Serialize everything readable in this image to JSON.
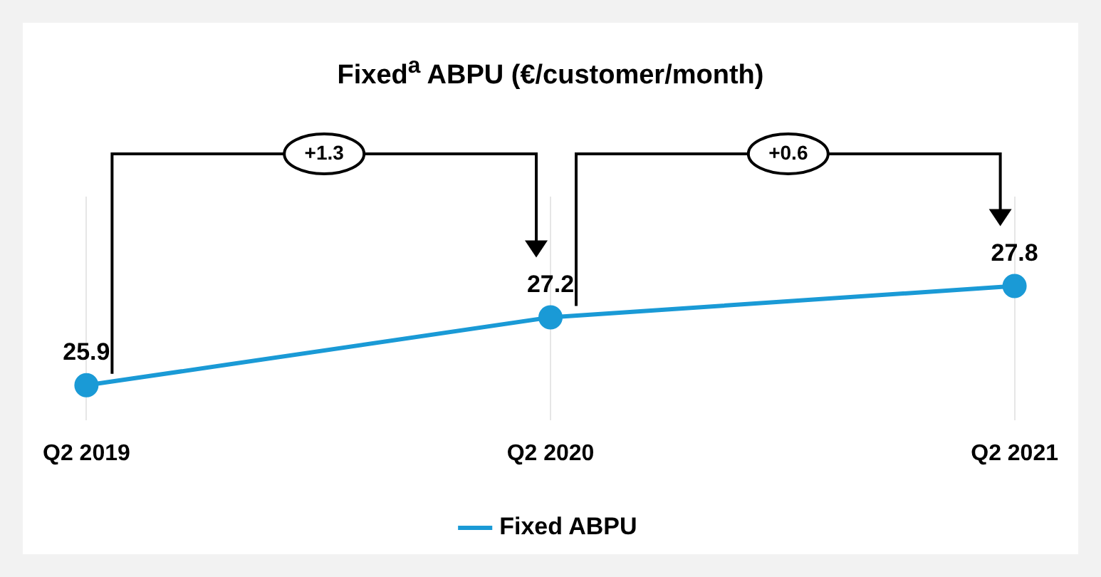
{
  "chart_data": {
    "type": "line",
    "title": "Fixed$^{a}$ ABPU (€/customer/month)",
    "categories": [
      "Q2 2019",
      "Q2 2020",
      "Q2 2021"
    ],
    "series": [
      {
        "name": "Fixed ABPU",
        "color": "#1a9ad6",
        "values": [
          25.9,
          27.2,
          27.8
        ]
      }
    ],
    "data_labels": true,
    "legend": "bottom",
    "marker": "circle",
    "grid": "x",
    "annotations": [
      "+1.3",
      "+0.6"
    ]
  }
}
